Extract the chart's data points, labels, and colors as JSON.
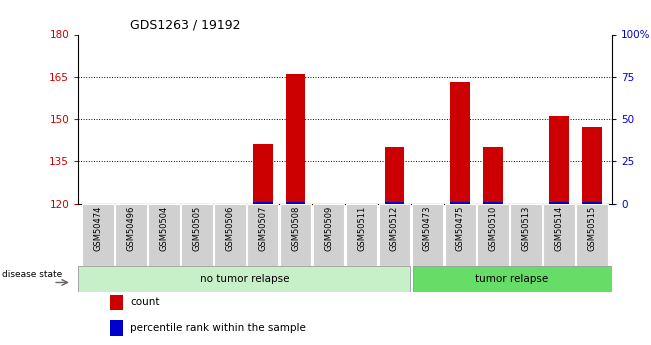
{
  "title": "GDS1263 / 19192",
  "samples": [
    "GSM50474",
    "GSM50496",
    "GSM50504",
    "GSM50505",
    "GSM50506",
    "GSM50507",
    "GSM50508",
    "GSM50509",
    "GSM50511",
    "GSM50512",
    "GSM50473",
    "GSM50475",
    "GSM50510",
    "GSM50513",
    "GSM50514",
    "GSM50515"
  ],
  "counts": [
    120,
    120,
    120,
    120,
    120,
    141,
    166,
    120,
    120,
    140,
    120,
    163,
    140,
    120,
    151,
    147
  ],
  "percentile": [
    0,
    0,
    0,
    0,
    0,
    1,
    1,
    0,
    0,
    1,
    0,
    1,
    1,
    0,
    1,
    1
  ],
  "group_labels": [
    "no tumor relapse",
    "tumor relapse"
  ],
  "group_no_tumor_count": 10,
  "group_tumor_count": 6,
  "ylim_left": [
    120,
    180
  ],
  "yticks_left": [
    120,
    135,
    150,
    165,
    180
  ],
  "ylim_right": [
    0,
    100
  ],
  "yticks_right": [
    0,
    25,
    50,
    75,
    100
  ],
  "bar_color": "#cc0000",
  "percentile_color": "#0000cc",
  "bar_width": 0.6,
  "group_colors": [
    "#c8f0c8",
    "#66dd66"
  ],
  "legend_items": [
    "count",
    "percentile rank within the sample"
  ],
  "legend_colors": [
    "#cc0000",
    "#0000cc"
  ],
  "grid_color": "#000000",
  "background_color": "#ffffff",
  "tick_color_left": "#cc0000",
  "tick_color_right": "#0000cc",
  "xticklabel_bg": "#d0d0d0"
}
